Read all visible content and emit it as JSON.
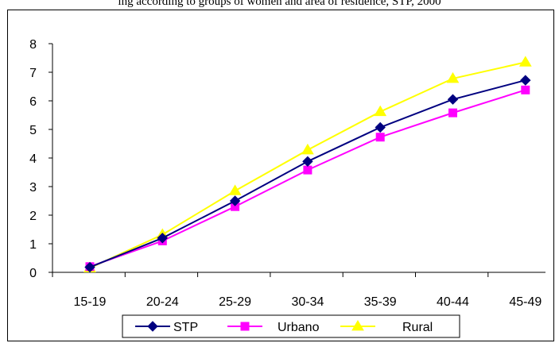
{
  "caption": "ing according to groups of women and area of residence, STP, 2000",
  "chart_data": {
    "type": "line",
    "title": "",
    "xlabel": "",
    "ylabel": "",
    "categories": [
      "15-19",
      "20-24",
      "25-29",
      "30-34",
      "35-39",
      "40-44",
      "45-49"
    ],
    "ylim": [
      0,
      8
    ],
    "yticks": [
      "0",
      "1",
      "2",
      "3",
      "4",
      "5",
      "6",
      "7",
      "8"
    ],
    "grid": false,
    "legend_position": "bottom",
    "series": [
      {
        "name": "STP",
        "color": "#000080",
        "marker": "diamond",
        "values": [
          0.18,
          1.2,
          2.5,
          3.88,
          5.07,
          6.05,
          6.72
        ]
      },
      {
        "name": "Urbano",
        "color": "#ff00ff",
        "marker": "square",
        "values": [
          0.2,
          1.1,
          2.3,
          3.58,
          4.73,
          5.58,
          6.38
        ]
      },
      {
        "name": "Rural",
        "color": "#ffff00",
        "marker": "triangle",
        "values": [
          0.15,
          1.32,
          2.85,
          4.28,
          5.62,
          6.78,
          7.35
        ]
      }
    ]
  }
}
